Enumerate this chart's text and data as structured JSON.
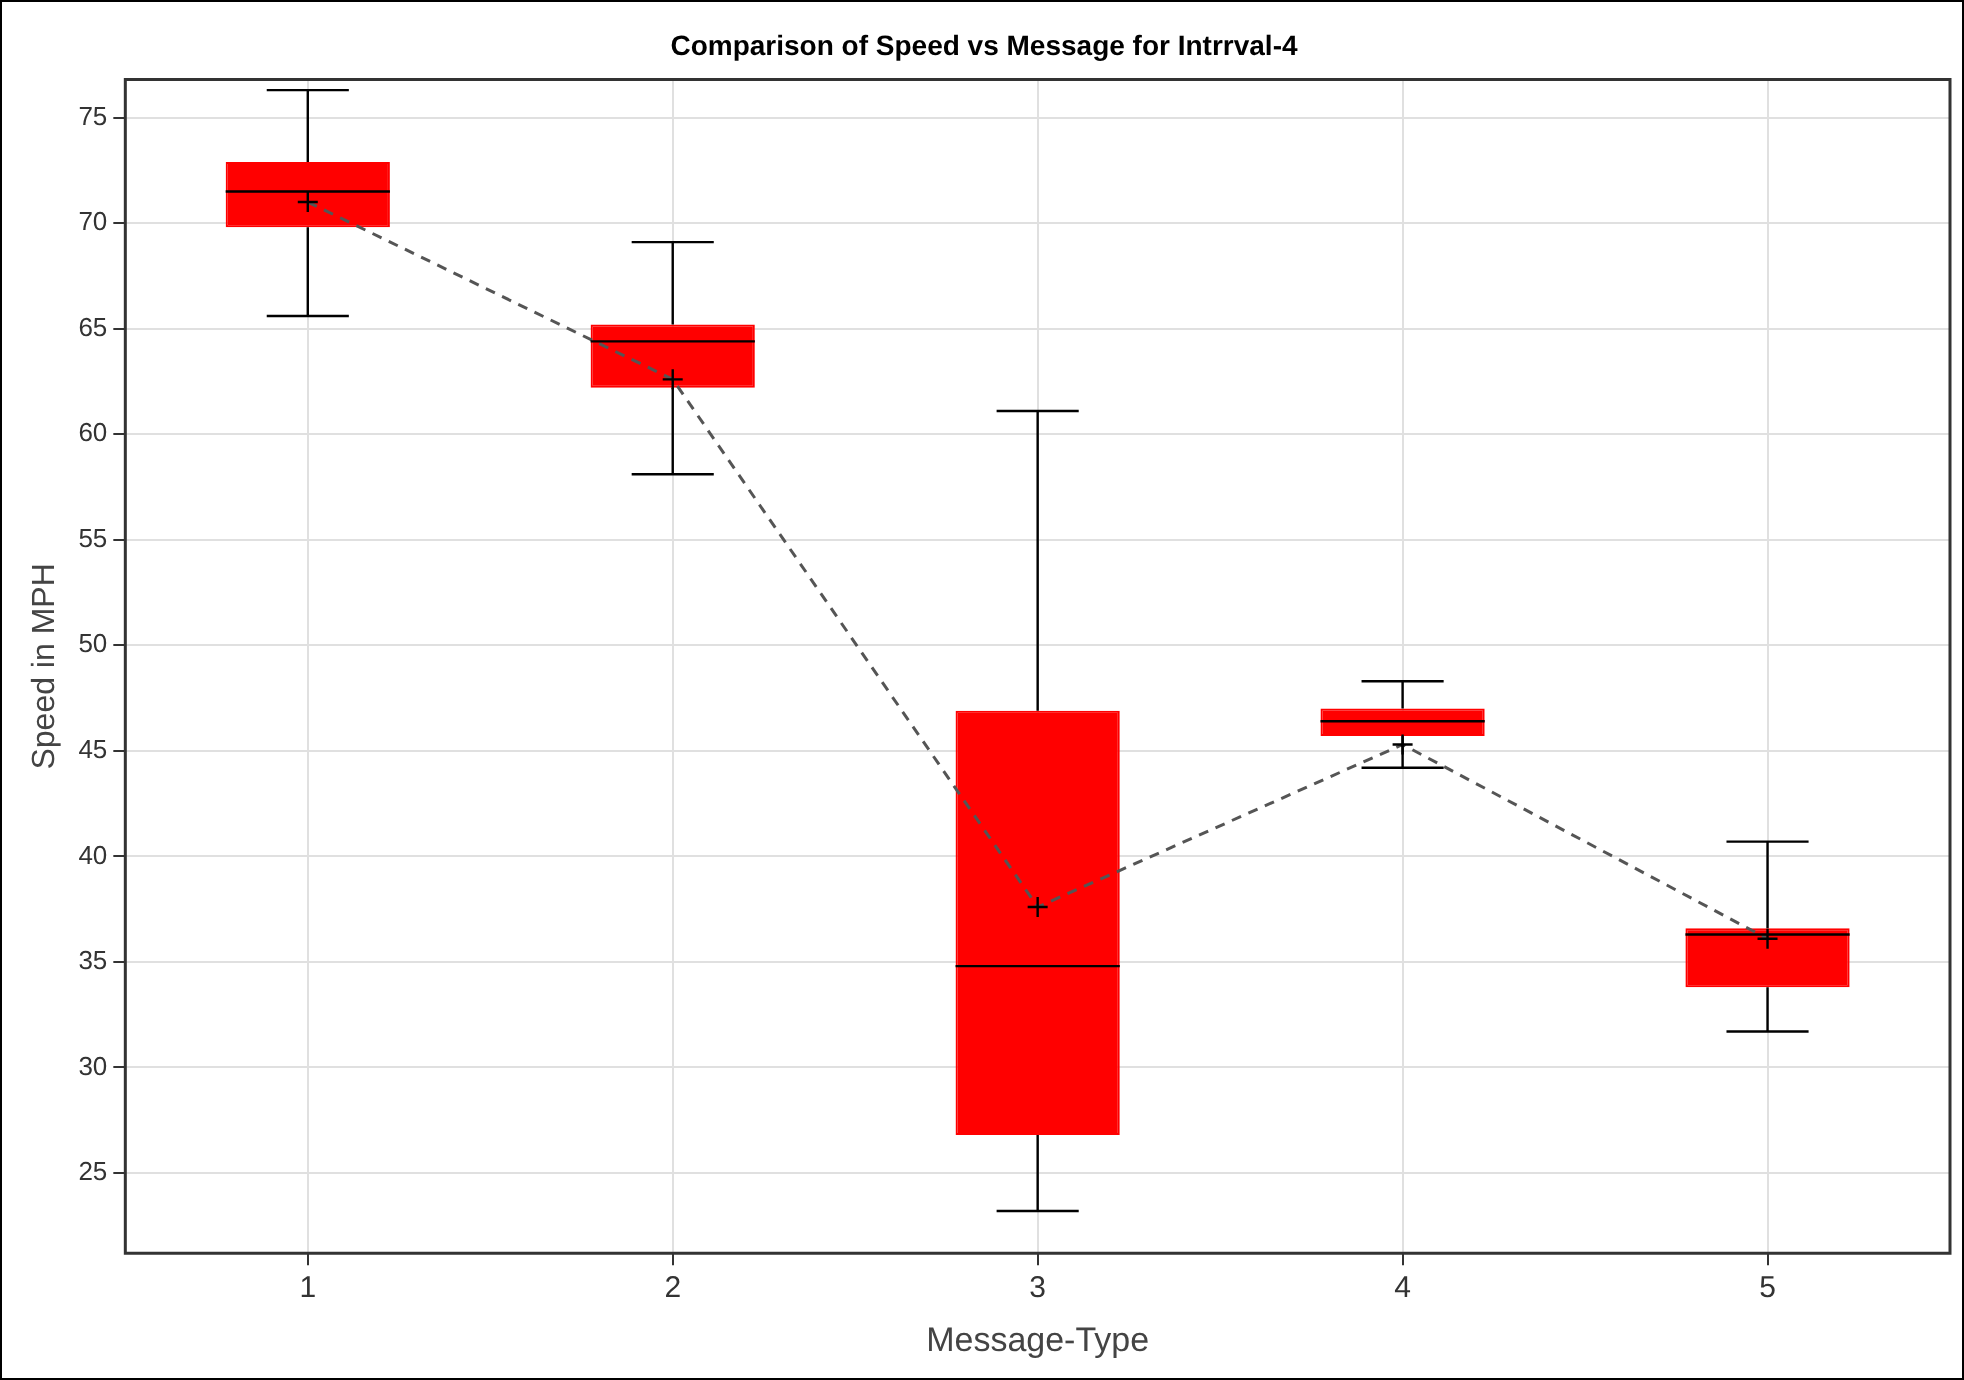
{
  "chart_data": {
    "type": "box",
    "title": "Comparison of Speed vs Message for Intrrval-4",
    "xlabel": "Message-Type",
    "ylabel": "Speed in MPH",
    "categories": [
      "1",
      "2",
      "3",
      "4",
      "5"
    ],
    "series": [
      {
        "color": "#ff0000",
        "marker": "cross",
        "boxes": [
          {
            "low": 65.6,
            "q1": 69.8,
            "median": 71.5,
            "q3": 72.9,
            "high": 76.3,
            "mean": 71.0
          },
          {
            "low": 58.1,
            "q1": 62.2,
            "median": 64.4,
            "q3": 65.2,
            "high": 69.1,
            "mean": 62.6
          },
          {
            "low": 23.2,
            "q1": 26.8,
            "median": 34.8,
            "q3": 46.9,
            "high": 61.1,
            "mean": 37.6
          },
          {
            "low": 44.2,
            "q1": 45.7,
            "median": 46.4,
            "q3": 47.0,
            "high": 48.3,
            "mean": 45.3
          },
          {
            "low": 31.7,
            "q1": 33.8,
            "median": 36.3,
            "q3": 36.6,
            "high": 40.7,
            "mean": 36.1
          }
        ]
      },
      {
        "type": "line",
        "color": "#555555",
        "line_style": "dashed",
        "marker": "none",
        "values": [
          71.0,
          62.6,
          37.6,
          45.3,
          36.1
        ]
      }
    ],
    "ylim": [
      21.2,
      76.8
    ],
    "yticks": [
      25,
      30,
      35,
      40,
      45,
      50,
      55,
      60,
      65,
      70,
      75
    ],
    "grid": true,
    "legend": false
  }
}
